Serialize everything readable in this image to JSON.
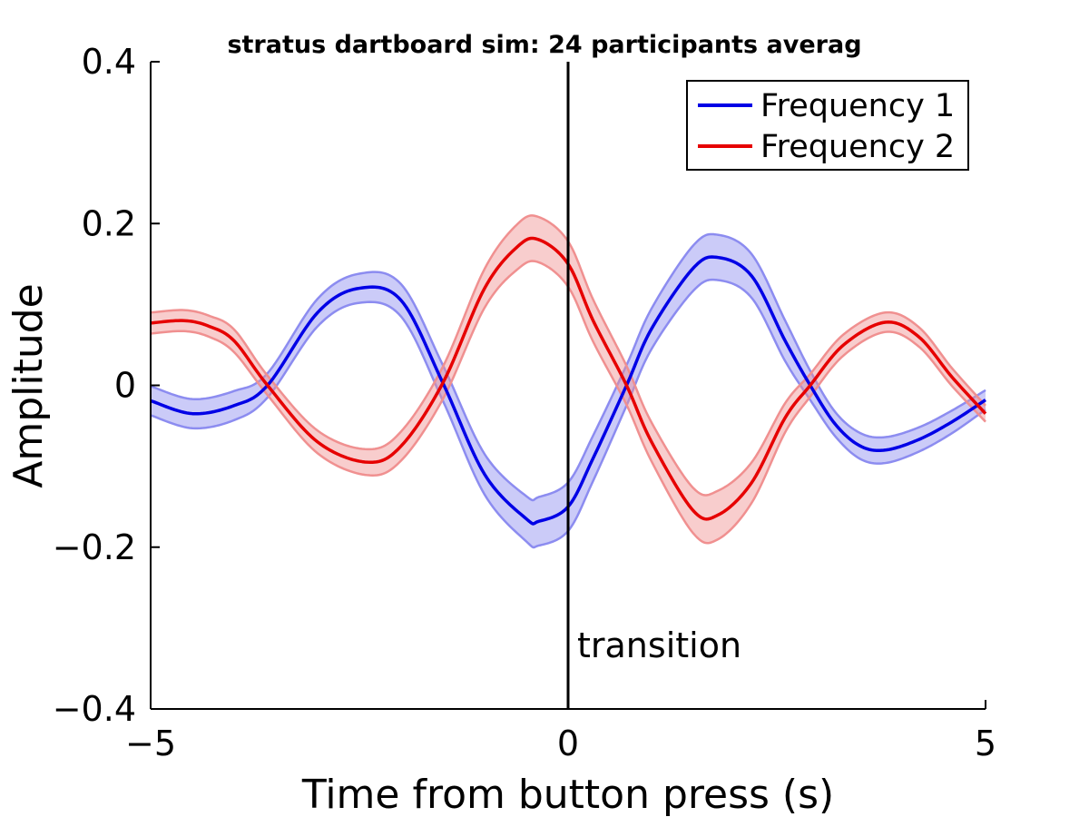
{
  "chart_data": {
    "type": "line",
    "title": "stratus dartboard sim: 24 participants averag",
    "xlabel": "Time from button press (s)",
    "ylabel": "Amplitude",
    "xlim": [
      -5,
      5
    ],
    "ylim": [
      -0.4,
      0.4
    ],
    "xticks": [
      {
        "value": -5,
        "label": "−5"
      },
      {
        "value": 0,
        "label": "0"
      },
      {
        "value": 5,
        "label": "5"
      }
    ],
    "yticks": [
      {
        "value": -0.4,
        "label": "−0.4"
      },
      {
        "value": -0.2,
        "label": "−0.2"
      },
      {
        "value": 0,
        "label": "0"
      },
      {
        "value": 0.2,
        "label": "0.2"
      },
      {
        "value": 0.4,
        "label": "0.4"
      }
    ],
    "legend_position": "top-right",
    "grid": false,
    "series": [
      {
        "name": "Frequency 1",
        "color": "#0000e6",
        "band_color": "#8c8cf0",
        "x": [
          -5.0,
          -4.5,
          -4.0,
          -3.6,
          -3.0,
          -2.5,
          -2.0,
          -1.5,
          -1.0,
          -0.5,
          -0.35,
          0.0,
          0.3,
          0.7,
          1.0,
          1.5,
          1.8,
          2.2,
          2.6,
          2.9,
          3.2,
          3.5,
          3.8,
          4.2,
          4.6,
          5.0
        ],
        "y": [
          -0.019,
          -0.035,
          -0.025,
          0.0,
          0.09,
          0.12,
          0.105,
          0.003,
          -0.11,
          -0.165,
          -0.168,
          -0.15,
          -0.09,
          0.0,
          0.07,
          0.145,
          0.158,
          0.135,
          0.055,
          0.0,
          -0.048,
          -0.075,
          -0.08,
          -0.067,
          -0.045,
          -0.018
        ],
        "band": [
          0.018,
          0.018,
          0.018,
          0.015,
          0.017,
          0.018,
          0.02,
          0.022,
          0.025,
          0.028,
          0.03,
          0.03,
          0.028,
          0.025,
          0.025,
          0.028,
          0.028,
          0.027,
          0.025,
          0.018,
          0.015,
          0.016,
          0.016,
          0.015,
          0.014,
          0.012
        ]
      },
      {
        "name": "Frequency 2",
        "color": "#e60000",
        "band_color": "#f09090",
        "x": [
          -5.0,
          -4.6,
          -4.3,
          -4.0,
          -3.6,
          -3.0,
          -2.4,
          -2.0,
          -1.5,
          -1.0,
          -0.6,
          -0.35,
          0.0,
          0.3,
          0.7,
          1.0,
          1.5,
          1.8,
          2.2,
          2.6,
          2.9,
          3.3,
          3.8,
          4.2,
          4.6,
          5.0
        ],
        "y": [
          0.077,
          0.08,
          0.073,
          0.055,
          0.0,
          -0.07,
          -0.095,
          -0.075,
          0.003,
          0.12,
          0.172,
          0.18,
          0.15,
          0.08,
          0.0,
          -0.07,
          -0.155,
          -0.16,
          -0.12,
          -0.04,
          0.0,
          0.05,
          0.078,
          0.06,
          0.01,
          -0.035
        ],
        "band": [
          0.013,
          0.013,
          0.013,
          0.014,
          0.012,
          0.014,
          0.016,
          0.018,
          0.02,
          0.024,
          0.028,
          0.028,
          0.028,
          0.026,
          0.024,
          0.024,
          0.028,
          0.03,
          0.025,
          0.018,
          0.014,
          0.013,
          0.012,
          0.012,
          0.011,
          0.01
        ]
      }
    ],
    "vline": {
      "x": 0,
      "label": "transition",
      "color": "#000000"
    }
  }
}
